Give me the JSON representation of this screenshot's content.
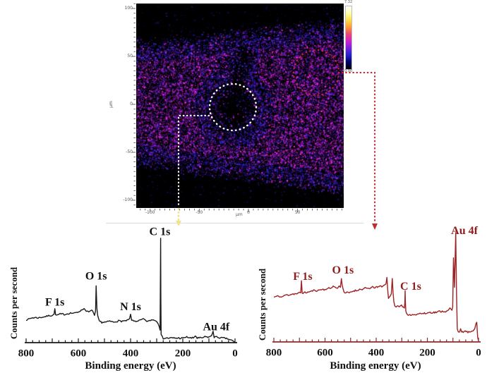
{
  "window": {
    "background": "#ffffff"
  },
  "map": {
    "description": "XPS chemical image map (magenta/blue intensity noise on black)",
    "x_unit": "μm",
    "y_unit": "μm",
    "x_tick_labels": [
      "-100",
      "-50",
      "0",
      "50"
    ],
    "x_tick_values": [
      -100,
      -50,
      0,
      50
    ],
    "y_tick_labels": [
      "100",
      "50",
      "0",
      "-50",
      "-100"
    ],
    "y_tick_values": [
      100,
      50,
      0,
      -50,
      -100
    ],
    "colorbar": {
      "max_label": "7.32",
      "min_label": "0.00",
      "stops": [
        "#ffffff",
        "#ffffaa",
        "#ffdd44",
        "#ff9933",
        "#ee4477",
        "#cc22cc",
        "#7722dd",
        "#2222cc",
        "#000066",
        "#000000"
      ]
    },
    "palette": {
      "background": "#000000",
      "magenta": [
        "#f724e8",
        "#e018d0",
        "#ff3cf0",
        "#c71bd0"
      ],
      "purple": [
        "#7a22e0",
        "#5b18c8",
        "#8e2be6"
      ],
      "blue": [
        "#2218c0",
        "#3426d8",
        "#1a10a0",
        "#4636e0"
      ],
      "dim_blue": [
        "#141060",
        "#1c1880",
        "#100c50"
      ]
    }
  },
  "annotations": {
    "left_roi": {
      "shape": "dotted-circle",
      "color": "#ffffff"
    },
    "left_connector": {
      "style": "dotted-arrow",
      "color_inside_map": "#ffffff",
      "color_outside": "#efe48c"
    },
    "right_roi": {
      "shape": "dotted-circle",
      "color": "#cc2936"
    },
    "right_connector": {
      "style": "dotted-arrow",
      "color": "#c22b33"
    }
  },
  "chart_data": [
    {
      "type": "line",
      "title": "",
      "xlabel": "Binding energy (eV)",
      "ylabel": "Counts per second",
      "xlim": [
        800,
        0
      ],
      "ylim": [
        0,
        110
      ],
      "xticks_labels": [
        "800",
        "600",
        "400",
        "200",
        "0"
      ],
      "xticks_values": [
        800,
        600,
        400,
        200,
        0
      ],
      "axis_color": "#1a1a1a",
      "tick_label_color": "#111111",
      "peak_labels": [
        {
          "text": "F 1s",
          "eV": 690,
          "rel": 35
        },
        {
          "text": "O 1s",
          "eV": 532,
          "rel": 58
        },
        {
          "text": "N 1s",
          "eV": 400,
          "rel": 31
        },
        {
          "text": "C 1s",
          "eV": 288,
          "rel": 97
        },
        {
          "text": "Au 4f",
          "eV": 72,
          "rel": 13
        }
      ],
      "series": [
        {
          "name": "XPS survey spectrum - white dotted circle region",
          "color": "#1a1a1a",
          "points": [
            [
              800,
              20
            ],
            [
              775,
              22
            ],
            [
              750,
              22
            ],
            [
              725,
              23
            ],
            [
              710,
              24
            ],
            [
              700,
              24
            ],
            [
              693,
              25
            ],
            [
              690,
              30
            ],
            [
              687,
              24
            ],
            [
              670,
              25
            ],
            [
              650,
              25
            ],
            [
              630,
              26
            ],
            [
              615,
              26
            ],
            [
              600,
              27
            ],
            [
              585,
              29
            ],
            [
              578,
              30
            ],
            [
              570,
              28
            ],
            [
              560,
              27
            ],
            [
              552,
              28
            ],
            [
              545,
              28
            ],
            [
              538,
              24
            ],
            [
              534,
              28
            ],
            [
              532,
              50
            ],
            [
              529,
              30
            ],
            [
              526,
              24
            ],
            [
              520,
              19
            ],
            [
              510,
              18
            ],
            [
              495,
              18
            ],
            [
              480,
              19
            ],
            [
              465,
              18
            ],
            [
              450,
              19
            ],
            [
              435,
              19
            ],
            [
              420,
              19
            ],
            [
              410,
              20
            ],
            [
              404,
              21
            ],
            [
              400,
              25
            ],
            [
              396,
              20
            ],
            [
              388,
              19
            ],
            [
              375,
              19
            ],
            [
              360,
              20
            ],
            [
              350,
              21
            ],
            [
              340,
              19
            ],
            [
              330,
              19
            ],
            [
              320,
              20
            ],
            [
              310,
              20
            ],
            [
              302,
              19
            ],
            [
              295,
              17
            ],
            [
              290,
              14
            ],
            [
              287,
              11
            ],
            [
              285,
              92
            ],
            [
              284,
              40
            ],
            [
              283,
              7
            ],
            [
              275,
              4
            ],
            [
              260,
              4
            ],
            [
              245,
              4
            ],
            [
              230,
              4
            ],
            [
              215,
              4
            ],
            [
              200,
              4
            ],
            [
              185,
              5
            ],
            [
              170,
              4
            ],
            [
              160,
              4
            ],
            [
              152,
              6
            ],
            [
              145,
              4
            ],
            [
              130,
              4
            ],
            [
              115,
              5
            ],
            [
              100,
              5
            ],
            [
              90,
              6
            ],
            [
              84,
              10
            ],
            [
              80,
              5
            ],
            [
              70,
              5
            ],
            [
              55,
              4
            ],
            [
              40,
              4
            ],
            [
              25,
              3
            ],
            [
              12,
              2
            ],
            [
              5,
              1
            ],
            [
              0,
              0
            ]
          ]
        }
      ]
    },
    {
      "type": "line",
      "title": "",
      "xlabel": "Binding energy (eV)",
      "ylabel": "Counts per second",
      "xlim": [
        800,
        0
      ],
      "ylim": [
        0,
        110
      ],
      "xticks_labels": [
        "800",
        "600",
        "400",
        "200",
        "0"
      ],
      "xticks_values": [
        800,
        600,
        400,
        200,
        0
      ],
      "axis_color": "#8f2a2a",
      "tick_label_color": "#111111",
      "peak_labels": [
        {
          "text": "F 1s",
          "eV": 687,
          "rel": 59
        },
        {
          "text": "O 1s",
          "eV": 530,
          "rel": 65
        },
        {
          "text": "C 1s",
          "eV": 265,
          "rel": 50
        },
        {
          "text": "Au 4f",
          "eV": 55,
          "rel": 101
        }
      ],
      "series": [
        {
          "name": "XPS survey spectrum - red dotted circle region",
          "color": "#9e2224",
          "points": [
            [
              800,
              41
            ],
            [
              785,
              42
            ],
            [
              770,
              41
            ],
            [
              755,
              43
            ],
            [
              740,
              43
            ],
            [
              725,
              44
            ],
            [
              710,
              44
            ],
            [
              700,
              45
            ],
            [
              695,
              45
            ],
            [
              692,
              56
            ],
            [
              689,
              45
            ],
            [
              675,
              45
            ],
            [
              660,
              46
            ],
            [
              645,
              47
            ],
            [
              630,
              47
            ],
            [
              615,
              48
            ],
            [
              600,
              48
            ],
            [
              588,
              49
            ],
            [
              578,
              49
            ],
            [
              568,
              51
            ],
            [
              560,
              50
            ],
            [
              552,
              49
            ],
            [
              545,
              51
            ],
            [
              540,
              50
            ],
            [
              536,
              58
            ],
            [
              533,
              52
            ],
            [
              530,
              49
            ],
            [
              526,
              46
            ],
            [
              522,
              45
            ],
            [
              515,
              45
            ],
            [
              505,
              45
            ],
            [
              495,
              46
            ],
            [
              485,
              47
            ],
            [
              475,
              47
            ],
            [
              465,
              48
            ],
            [
              455,
              48
            ],
            [
              445,
              49
            ],
            [
              435,
              49
            ],
            [
              425,
              49
            ],
            [
              415,
              50
            ],
            [
              405,
              50
            ],
            [
              395,
              50
            ],
            [
              385,
              51
            ],
            [
              375,
              51
            ],
            [
              368,
              52
            ],
            [
              362,
              53
            ],
            [
              358,
              59
            ],
            [
              355,
              48
            ],
            [
              352,
              40
            ],
            [
              349,
              41
            ],
            [
              345,
              42
            ],
            [
              341,
              44
            ],
            [
              337,
              58
            ],
            [
              334,
              45
            ],
            [
              331,
              37
            ],
            [
              327,
              33
            ],
            [
              322,
              32
            ],
            [
              315,
              33
            ],
            [
              310,
              32
            ],
            [
              305,
              33
            ],
            [
              301,
              34
            ],
            [
              297,
              32
            ],
            [
              293,
              32
            ],
            [
              290,
              31
            ],
            [
              288,
              36
            ],
            [
              287,
              47
            ],
            [
              286,
              38
            ],
            [
              284,
              28
            ],
            [
              281,
              26
            ],
            [
              275,
              24
            ],
            [
              265,
              25
            ],
            [
              255,
              25
            ],
            [
              245,
              25
            ],
            [
              235,
              26
            ],
            [
              225,
              26
            ],
            [
              215,
              26
            ],
            [
              205,
              26
            ],
            [
              195,
              27
            ],
            [
              185,
              27
            ],
            [
              175,
              27
            ],
            [
              165,
              27
            ],
            [
              155,
              28
            ],
            [
              145,
              28
            ],
            [
              135,
              28
            ],
            [
              125,
              28
            ],
            [
              118,
              29
            ],
            [
              112,
              31
            ],
            [
              108,
              30
            ],
            [
              104,
              29
            ],
            [
              101,
              32
            ],
            [
              98,
              77
            ],
            [
              94,
              50
            ],
            [
              89,
              100
            ],
            [
              86,
              45
            ],
            [
              83,
              12
            ],
            [
              79,
              9
            ],
            [
              74,
              9
            ],
            [
              70,
              12
            ],
            [
              66,
              9
            ],
            [
              60,
              9
            ],
            [
              52,
              10
            ],
            [
              45,
              9
            ],
            [
              38,
              9
            ],
            [
              30,
              9
            ],
            [
              22,
              10
            ],
            [
              15,
              12
            ],
            [
              10,
              17
            ],
            [
              7,
              18
            ],
            [
              5,
              10
            ],
            [
              3,
              4
            ],
            [
              0,
              1
            ]
          ]
        }
      ]
    }
  ]
}
